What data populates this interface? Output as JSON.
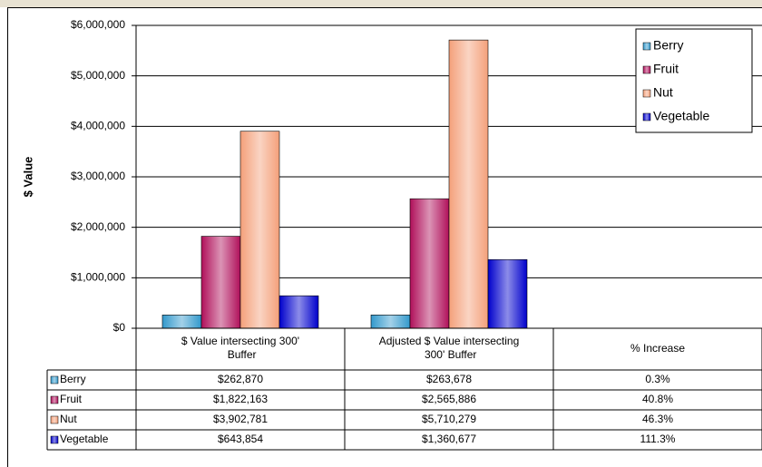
{
  "chart_data": {
    "type": "bar",
    "y_label": "$ Value",
    "categories": [
      "$ Value intersecting 300' Buffer",
      "Adjusted $ Value intersecting 300' Buffer",
      "% Increase"
    ],
    "series": [
      {
        "name": "Berry",
        "color": "#3399cc",
        "values": [
          262870,
          263678,
          0.3
        ],
        "value_labels": [
          "$262,870",
          "$263,678",
          "0.3%"
        ]
      },
      {
        "name": "Fruit",
        "color": "#b0105a",
        "values": [
          1822163,
          2565886,
          40.8
        ],
        "value_labels": [
          "$1,822,163",
          "$2,565,886",
          "40.8%"
        ]
      },
      {
        "name": "Nut",
        "color": "#f4a07a",
        "values": [
          3902781,
          5710279,
          46.3
        ],
        "value_labels": [
          "$3,902,781",
          "$5,710,279",
          "46.3%"
        ]
      },
      {
        "name": "Vegetable",
        "color": "#0000cc",
        "values": [
          643854,
          1360677,
          111.3
        ],
        "value_labels": [
          "$643,854",
          "$1,360,677",
          "111.3%"
        ]
      }
    ],
    "ylim": [
      0,
      6000000
    ],
    "yticks": [
      {
        "value": 0,
        "label": "$0"
      },
      {
        "value": 1000000,
        "label": "$1,000,000"
      },
      {
        "value": 2000000,
        "label": "$2,000,000"
      },
      {
        "value": 3000000,
        "label": "$3,000,000"
      },
      {
        "value": 4000000,
        "label": "$4,000,000"
      },
      {
        "value": 5000000,
        "label": "$5,000,000"
      },
      {
        "value": 6000000,
        "label": "$6,000,000"
      }
    ],
    "grid": true,
    "legend": "top-right",
    "data_table": true
  }
}
